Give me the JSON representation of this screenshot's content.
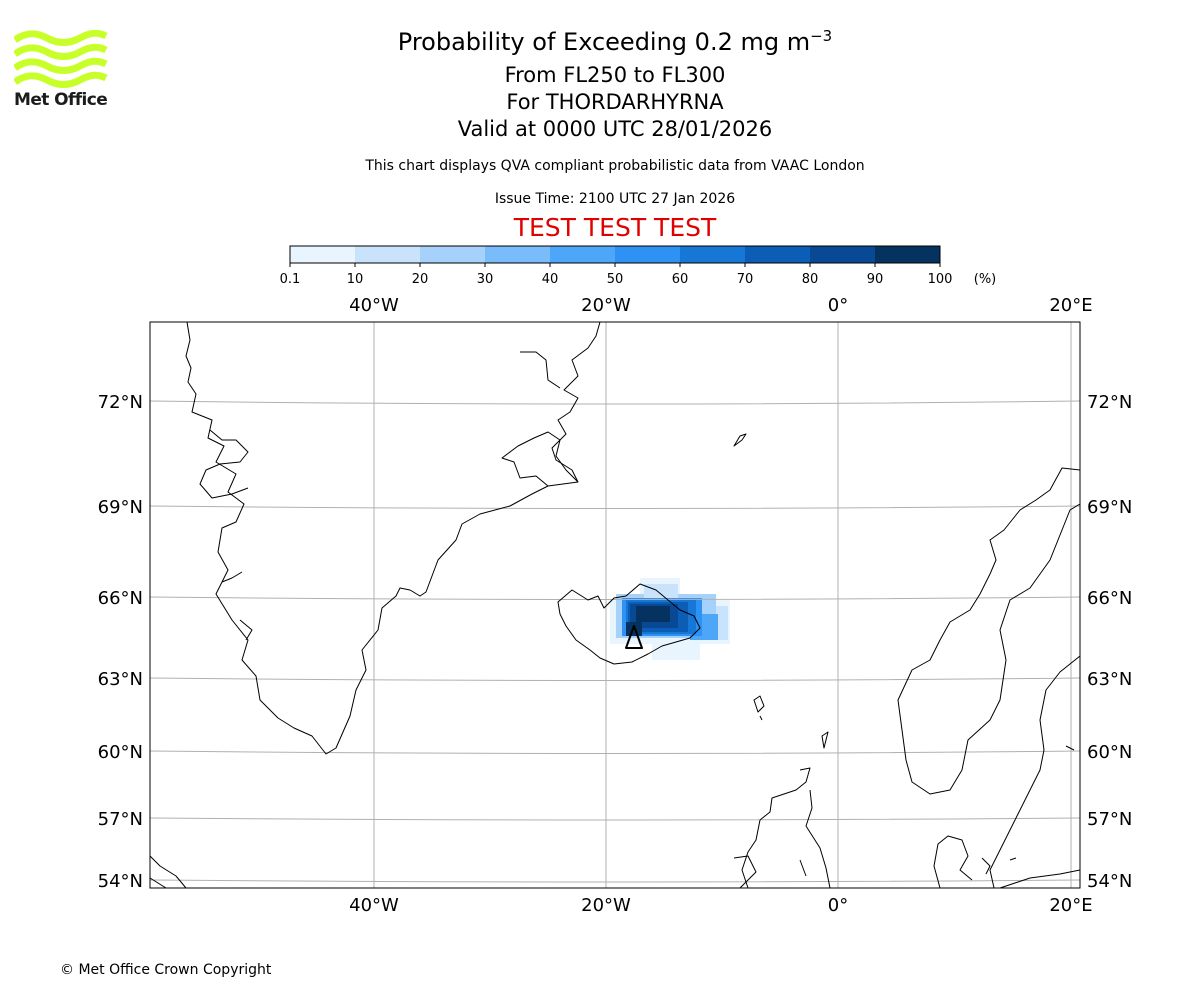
{
  "header": {
    "title_line1": "Probability of Exceeding 0.2 mg m",
    "title_superscript": "−3",
    "title_line2": "From FL250 to FL300",
    "title_line3": "For THORDARHYRNA",
    "title_line4": "Valid at 0000 UTC 28/01/2026",
    "disclaimer": "This chart displays QVA compliant probabilistic data from VAAC London",
    "issue_time": "Issue Time: 2100 UTC 27 Jan 2026",
    "test_banner": "TEST TEST TEST"
  },
  "logo": {
    "text": "Met Office",
    "color": "#c8ff28",
    "icon": "met-office-waves-logo"
  },
  "colorbar": {
    "levels": [
      "0.1",
      "10",
      "20",
      "30",
      "40",
      "50",
      "60",
      "70",
      "80",
      "90",
      "100"
    ],
    "unit": "(%)",
    "colors": [
      "#e8f4fe",
      "#c8e3fb",
      "#a6d1fa",
      "#79bcf9",
      "#4ea6f8",
      "#2d92f3",
      "#1677d6",
      "#0b5db6",
      "#084996",
      "#05325f"
    ]
  },
  "map": {
    "top_lon_labels": [
      "40°W",
      "20°W",
      "0°",
      "20°E"
    ],
    "bottom_lon_labels": [
      "40°W",
      "20°W",
      "0°",
      "20°E"
    ],
    "left_lat_labels": [
      "72°N",
      "69°N",
      "66°N",
      "63°N",
      "60°N",
      "57°N",
      "54°N"
    ],
    "right_lat_labels": [
      "72°N",
      "69°N",
      "66°N",
      "63°N",
      "60°N",
      "57°N",
      "54°N"
    ],
    "gridline_color": "#b0b0b0",
    "volcano_marker": "volcano-triangle-icon"
  },
  "footer": {
    "copyright": "© Met Office Crown Copyright"
  }
}
